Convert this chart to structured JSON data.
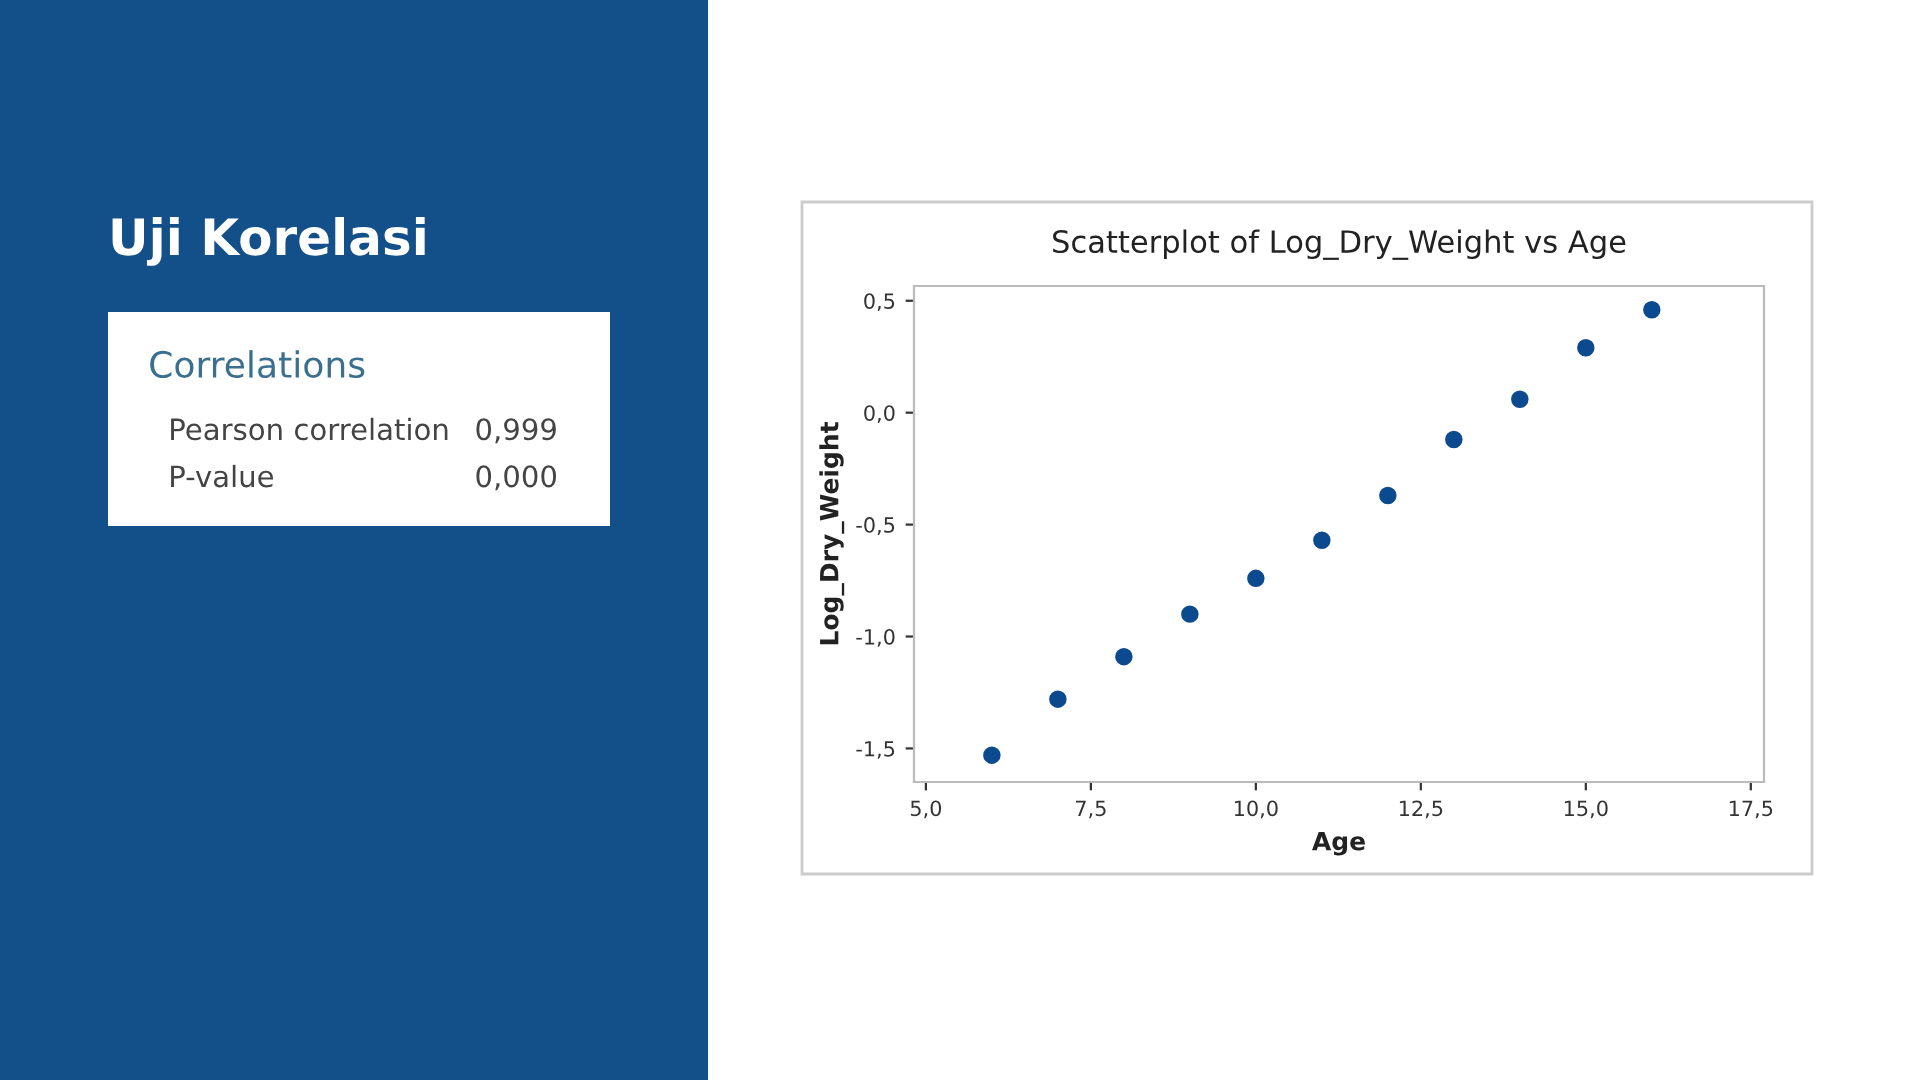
{
  "chart_data": [
    {
      "type": "other",
      "title": "Uji Korelasi",
      "subtitle": "Correlations",
      "annotations": [
        "Pearson correlation",
        "0,999",
        "P-value",
        "0,000"
      ]
    },
    {
      "type": "scatter",
      "title": "Scatterplot of Log_Dry_Weight vs Age",
      "xlabel": "Age",
      "ylabel": "Log_Dry_Weight",
      "x": [
        6,
        7,
        8,
        9,
        10,
        11,
        12,
        13,
        14,
        15,
        16
      ],
      "series": [
        {
          "color": "#0b4a8e",
          "values": [
            -1.53,
            -1.28,
            -1.09,
            -0.9,
            -0.74,
            -0.57,
            -0.37,
            -0.12,
            0.06,
            0.29,
            0.46
          ]
        }
      ],
      "xlim": [
        4.82,
        17.7
      ],
      "ylim": [
        -1.65,
        0.566
      ],
      "xticks": [
        {
          "value": 5,
          "label": "5,0"
        },
        {
          "value": 7.5,
          "label": "7,5"
        },
        {
          "value": 10,
          "label": "10,0"
        },
        {
          "value": 12.5,
          "label": "12,5"
        },
        {
          "value": 15,
          "label": "15,0"
        },
        {
          "value": 17.5,
          "label": "17,5"
        }
      ],
      "yticks": [
        {
          "value": -1.5,
          "label": "-1,5"
        },
        {
          "value": -1,
          "label": "-1,0"
        },
        {
          "value": -0.5,
          "label": "-0,5"
        },
        {
          "value": 0,
          "label": "0,0"
        },
        {
          "value": 0.5,
          "label": "0,5"
        }
      ],
      "marker": "circle",
      "grid": false
    }
  ]
}
